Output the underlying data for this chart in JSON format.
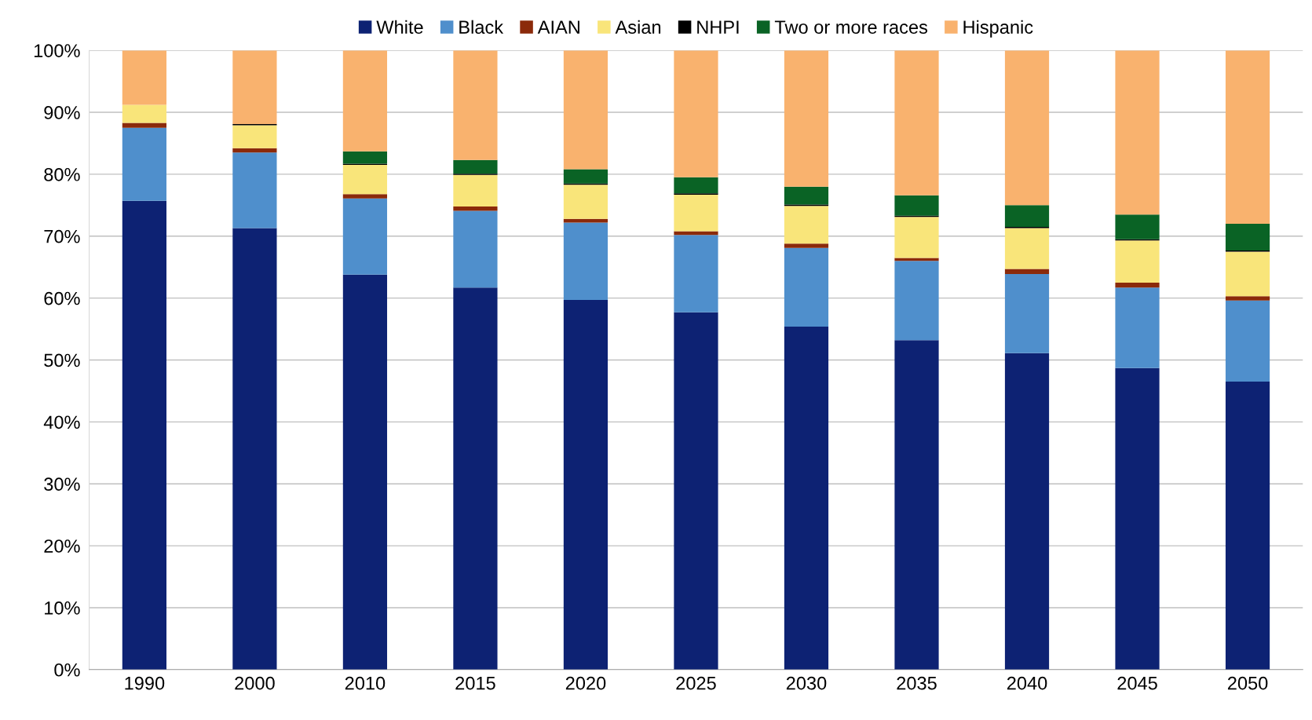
{
  "chart_data": {
    "type": "bar",
    "stacked": true,
    "legend": "top",
    "grid": "y",
    "categories": [
      "1990",
      "2000",
      "2010",
      "2015",
      "2020",
      "2025",
      "2030",
      "2035",
      "2040",
      "2045",
      "2050"
    ],
    "ylim": [
      0,
      100
    ],
    "yticks": [
      {
        "value": 0,
        "label": "0%"
      },
      {
        "value": 10,
        "label": "10%"
      },
      {
        "value": 20,
        "label": "20%"
      },
      {
        "value": 30,
        "label": "30%"
      },
      {
        "value": 40,
        "label": "40%"
      },
      {
        "value": 50,
        "label": "50%"
      },
      {
        "value": 60,
        "label": "60%"
      },
      {
        "value": 70,
        "label": "70%"
      },
      {
        "value": 80,
        "label": "80%"
      },
      {
        "value": 90,
        "label": "90%"
      },
      {
        "value": 100,
        "label": "100%"
      }
    ],
    "series": [
      {
        "name": "White",
        "color": "#0d2273",
        "values": [
          75.7,
          71.3,
          63.8,
          61.7,
          59.7,
          57.7,
          55.4,
          53.2,
          51.1,
          48.7,
          46.5
        ]
      },
      {
        "name": "Black",
        "color": "#4f8fcc",
        "values": [
          11.8,
          12.2,
          12.3,
          12.4,
          12.5,
          12.5,
          12.7,
          12.8,
          12.8,
          13.0,
          13.1
        ]
      },
      {
        "name": "AIAN",
        "color": "#8b2a0a",
        "values": [
          0.8,
          0.7,
          0.7,
          0.7,
          0.6,
          0.6,
          0.7,
          0.5,
          0.8,
          0.8,
          0.7
        ]
      },
      {
        "name": "Asian",
        "color": "#f9e57a",
        "values": [
          2.9,
          3.7,
          4.7,
          5.1,
          5.5,
          5.9,
          6.1,
          6.6,
          6.6,
          6.8,
          7.2
        ]
      },
      {
        "name": "NHPI",
        "color": "#000000",
        "values": [
          null,
          0.2,
          0.2,
          0.2,
          0.2,
          0.2,
          0.2,
          0.2,
          0.2,
          0.2,
          0.2
        ]
      },
      {
        "name": "Two or more races",
        "color": "#0a6325",
        "values": [
          0,
          0,
          2.0,
          2.2,
          2.3,
          2.6,
          2.9,
          3.3,
          3.5,
          4.0,
          4.3
        ]
      },
      {
        "name": "Hispanic",
        "color": "#f9b26e",
        "values": [
          8.8,
          11.9,
          16.3,
          17.7,
          19.2,
          20.5,
          22.0,
          23.4,
          25.0,
          26.5,
          28.0
        ]
      }
    ]
  }
}
